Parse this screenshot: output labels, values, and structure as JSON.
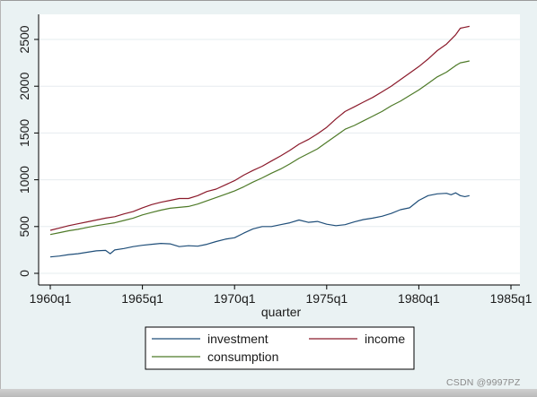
{
  "chart_data": {
    "type": "line",
    "xlabel": "quarter",
    "ylabel": "",
    "xlim": [
      1960.0,
      1985.0
    ],
    "ylim": [
      0,
      2700
    ],
    "x_ticks": [
      {
        "value": 1960.0,
        "label": "1960q1"
      },
      {
        "value": 1965.0,
        "label": "1965q1"
      },
      {
        "value": 1970.0,
        "label": "1970q1"
      },
      {
        "value": 1975.0,
        "label": "1975q1"
      },
      {
        "value": 1980.0,
        "label": "1980q1"
      },
      {
        "value": 1985.0,
        "label": "1985q1"
      }
    ],
    "y_ticks": [
      {
        "value": 0,
        "label": "0"
      },
      {
        "value": 500,
        "label": "500"
      },
      {
        "value": 1000,
        "label": "1000"
      },
      {
        "value": 1500,
        "label": "1500"
      },
      {
        "value": 2000,
        "label": "2000"
      },
      {
        "value": 2500,
        "label": "2500"
      }
    ],
    "grid": true,
    "legend_position": "bottom",
    "series": [
      {
        "name": "investment",
        "color": "#1f4e79",
        "x": [
          1960.0,
          1960.5,
          1961.0,
          1961.5,
          1962.0,
          1962.5,
          1963.0,
          1963.25,
          1963.5,
          1964.0,
          1964.5,
          1965.0,
          1965.5,
          1966.0,
          1966.5,
          1967.0,
          1967.5,
          1968.0,
          1968.5,
          1969.0,
          1969.5,
          1970.0,
          1970.5,
          1971.0,
          1971.5,
          1972.0,
          1972.5,
          1973.0,
          1973.5,
          1974.0,
          1974.5,
          1975.0,
          1975.5,
          1976.0,
          1976.5,
          1977.0,
          1977.5,
          1978.0,
          1978.5,
          1979.0,
          1979.5,
          1980.0,
          1980.5,
          1981.0,
          1981.5,
          1981.75,
          1982.0,
          1982.25,
          1982.5,
          1982.75
        ],
        "y": [
          175,
          185,
          200,
          210,
          225,
          240,
          245,
          210,
          250,
          265,
          285,
          300,
          310,
          320,
          315,
          285,
          295,
          290,
          310,
          340,
          365,
          380,
          430,
          475,
          500,
          500,
          520,
          540,
          570,
          545,
          555,
          525,
          510,
          520,
          550,
          575,
          590,
          610,
          640,
          680,
          700,
          780,
          830,
          850,
          855,
          840,
          860,
          830,
          820,
          830
        ]
      },
      {
        "name": "income",
        "color": "#8b1a2b",
        "x": [
          1960.0,
          1960.5,
          1961.0,
          1961.5,
          1962.0,
          1962.5,
          1963.0,
          1963.5,
          1964.0,
          1964.5,
          1965.0,
          1965.5,
          1966.0,
          1966.5,
          1967.0,
          1967.5,
          1968.0,
          1968.5,
          1969.0,
          1969.5,
          1970.0,
          1970.5,
          1971.0,
          1971.5,
          1972.0,
          1972.5,
          1973.0,
          1973.5,
          1974.0,
          1974.5,
          1975.0,
          1975.5,
          1976.0,
          1976.5,
          1977.0,
          1977.5,
          1978.0,
          1978.5,
          1979.0,
          1979.5,
          1980.0,
          1980.5,
          1981.0,
          1981.5,
          1982.0,
          1982.25,
          1982.5,
          1982.75
        ],
        "y": [
          460,
          485,
          510,
          530,
          550,
          570,
          590,
          605,
          635,
          660,
          700,
          735,
          760,
          780,
          800,
          800,
          830,
          875,
          900,
          945,
          990,
          1050,
          1100,
          1145,
          1200,
          1255,
          1315,
          1380,
          1430,
          1490,
          1560,
          1650,
          1730,
          1780,
          1830,
          1880,
          1940,
          2000,
          2070,
          2140,
          2210,
          2290,
          2380,
          2450,
          2550,
          2620,
          2630,
          2640
        ]
      },
      {
        "name": "consumption",
        "color": "#4e7a28",
        "x": [
          1960.0,
          1960.5,
          1961.0,
          1961.5,
          1962.0,
          1962.5,
          1963.0,
          1963.5,
          1964.0,
          1964.5,
          1965.0,
          1965.5,
          1966.0,
          1966.5,
          1967.0,
          1967.5,
          1968.0,
          1968.5,
          1969.0,
          1969.5,
          1970.0,
          1970.5,
          1971.0,
          1971.5,
          1972.0,
          1972.5,
          1973.0,
          1973.5,
          1974.0,
          1974.5,
          1975.0,
          1975.5,
          1976.0,
          1976.5,
          1977.0,
          1977.5,
          1978.0,
          1978.5,
          1979.0,
          1979.5,
          1980.0,
          1980.5,
          1981.0,
          1981.5,
          1982.0,
          1982.25,
          1982.5,
          1982.75
        ],
        "y": [
          415,
          435,
          455,
          470,
          490,
          510,
          525,
          540,
          565,
          590,
          625,
          650,
          675,
          695,
          705,
          715,
          740,
          775,
          810,
          845,
          880,
          925,
          975,
          1020,
          1070,
          1115,
          1170,
          1230,
          1280,
          1330,
          1400,
          1470,
          1540,
          1580,
          1630,
          1680,
          1730,
          1790,
          1840,
          1900,
          1960,
          2030,
          2100,
          2150,
          2220,
          2250,
          2260,
          2270
        ]
      }
    ]
  },
  "watermark": "CSDN @9997PZ"
}
